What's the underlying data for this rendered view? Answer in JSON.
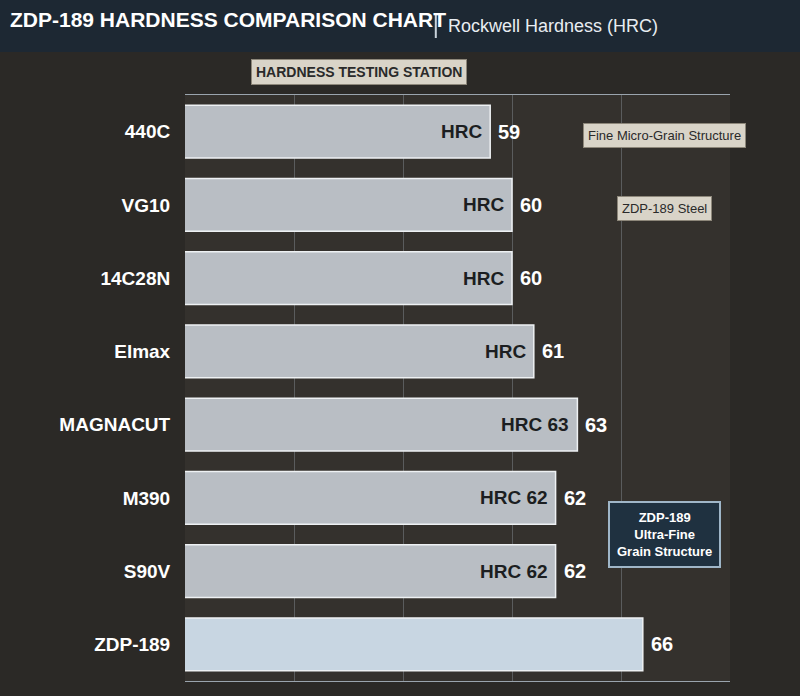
{
  "chart_data": {
    "type": "bar",
    "orientation": "horizontal",
    "title": "ZDP-189 HARDNESS COMPARISON CHART",
    "subtitle": "Rockwell Hardness (HRC)",
    "categories": [
      "440C",
      "VG10",
      "14C28N",
      "Elmax",
      "MAGNACUT",
      "M390",
      "S90V",
      "ZDP-189"
    ],
    "values": [
      59,
      60,
      60,
      61,
      63,
      62,
      62,
      66
    ],
    "colors": [
      "#b9bec4",
      "#b9bec4",
      "#b9bec4",
      "#b9bec4",
      "#b9bec4",
      "#b9bec4",
      "#b9bec4",
      "#c8d6e2"
    ],
    "data_labels": true,
    "bar_texts": [
      "HRC",
      "HRC",
      "HRC",
      "HRC",
      "HRC 63",
      "HRC 62",
      "HRC 62",
      null
    ],
    "annotations": [
      "HARDNESS TESTING STATION",
      "Fine Micro-Grain Structure",
      "ZDP-189 Steel"
    ],
    "callout": [
      "ZDP-189",
      "Ultra-Fine",
      "Grain Structure"
    ],
    "xlim": [
      45,
      70
    ],
    "xticks": [
      45,
      50,
      55,
      60,
      65,
      70
    ],
    "grid": true,
    "tick_labels": "y"
  }
}
